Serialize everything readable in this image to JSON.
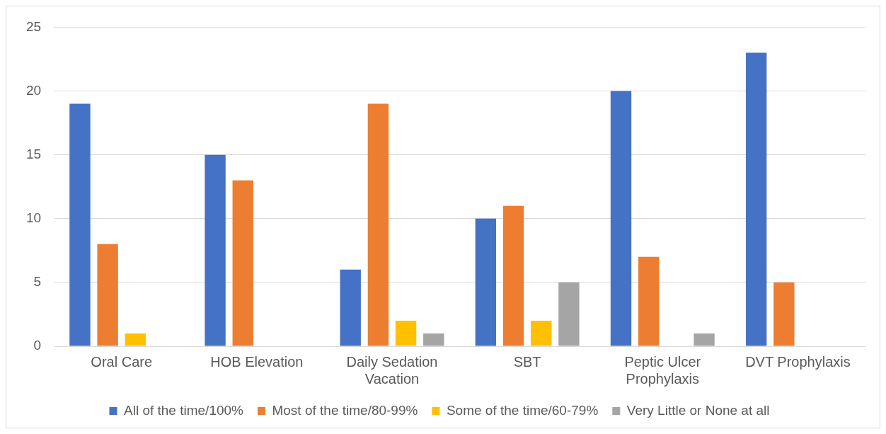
{
  "chart_data": {
    "type": "bar",
    "categories": [
      "Oral Care",
      "HOB Elevation",
      "Daily Sedation Vacation",
      "SBT",
      "Peptic Ulcer Prophylaxis",
      "DVT Prophylaxis"
    ],
    "series": [
      {
        "name": "All of the time/100%",
        "color": "#4472c4",
        "values": [
          19,
          15,
          6,
          10,
          20,
          23
        ]
      },
      {
        "name": "Most of the time/80-99%",
        "color": "#ed7d31",
        "values": [
          8,
          13,
          19,
          11,
          7,
          5
        ]
      },
      {
        "name": "Some of the time/60-79%",
        "color": "#ffc000",
        "values": [
          1,
          0,
          2,
          2,
          0,
          0
        ]
      },
      {
        "name": "Very Little or None at all",
        "color": "#a5a5a5",
        "values": [
          0,
          0,
          1,
          5,
          1,
          0
        ]
      }
    ],
    "ylim": [
      0,
      25
    ],
    "yticks": [
      0,
      5,
      10,
      15,
      20,
      25
    ],
    "grid": "y",
    "legend": "bottom"
  }
}
